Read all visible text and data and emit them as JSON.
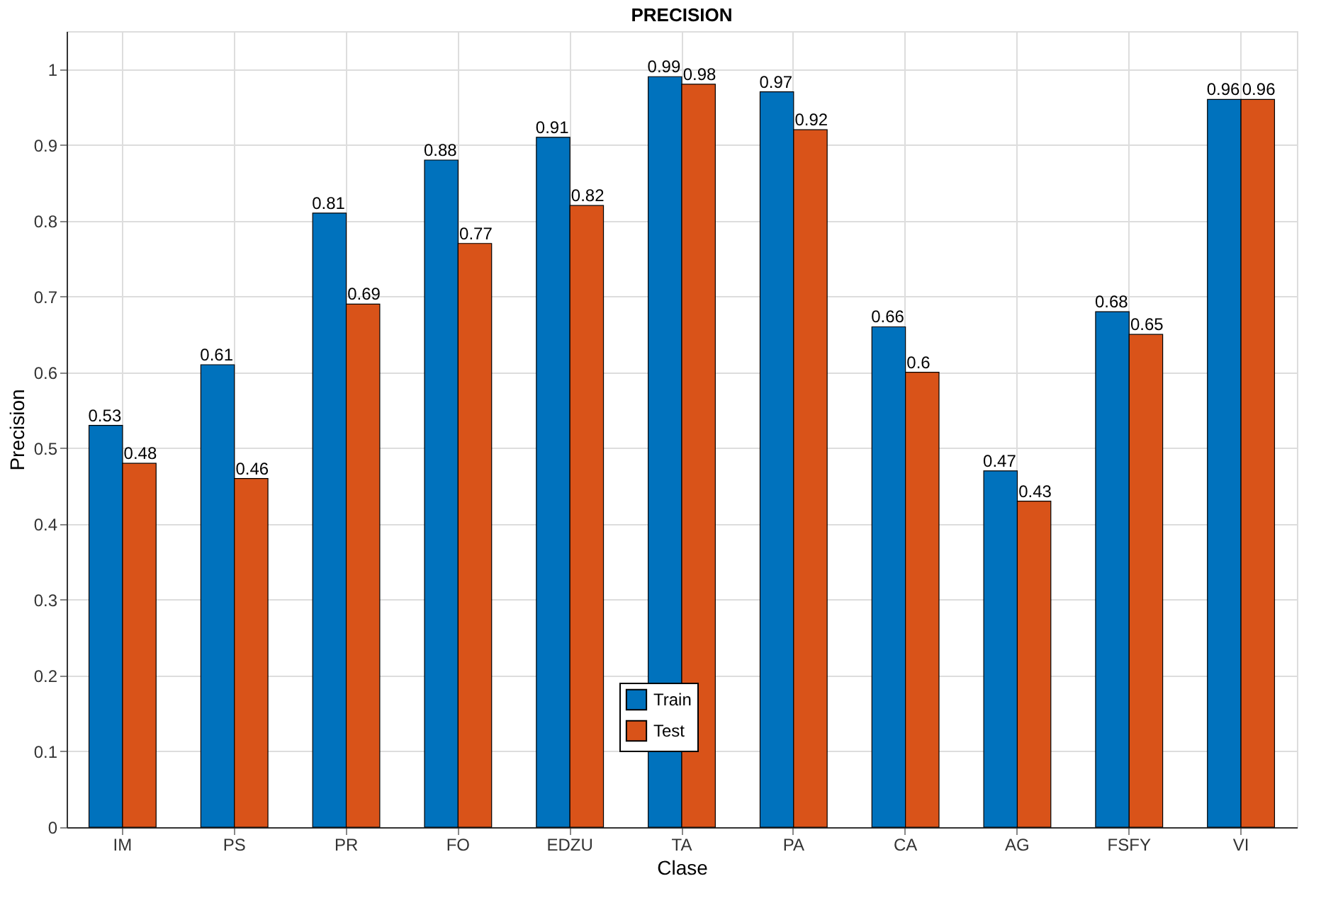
{
  "chart_data": {
    "type": "bar",
    "title": "PRECISION",
    "xlabel": "Clase",
    "ylabel": "Precision",
    "categories": [
      "IM",
      "PS",
      "PR",
      "FO",
      "EDZU",
      "TA",
      "PA",
      "CA",
      "AG",
      "FSFY",
      "VI"
    ],
    "series": [
      {
        "name": "Train",
        "color": "#0072bd",
        "values": [
          0.53,
          0.61,
          0.81,
          0.88,
          0.91,
          0.99,
          0.97,
          0.66,
          0.47,
          0.68,
          0.96
        ]
      },
      {
        "name": "Test",
        "color": "#d95319",
        "values": [
          0.48,
          0.46,
          0.69,
          0.77,
          0.82,
          0.98,
          0.92,
          0.6,
          0.43,
          0.65,
          0.96
        ]
      }
    ],
    "ylim": [
      0,
      1.05
    ],
    "yticks": [
      0,
      0.1,
      0.2,
      0.3,
      0.4,
      0.5,
      0.6,
      0.7,
      0.8,
      0.9,
      1
    ],
    "grid": true,
    "legend": "bottom",
    "data_labels": true
  }
}
